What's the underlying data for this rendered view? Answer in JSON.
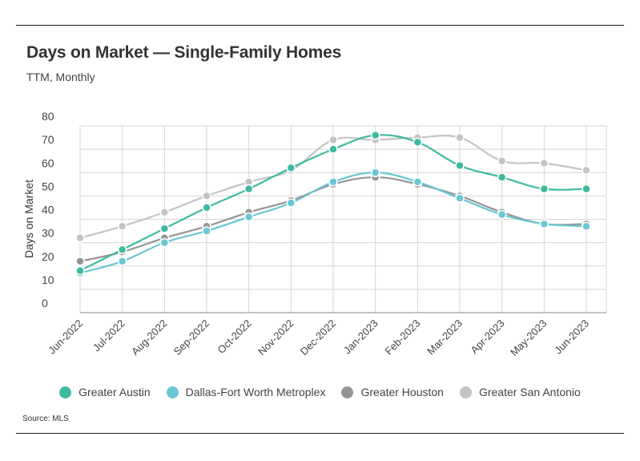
{
  "header": {
    "title": "Days on Market — Single-Family Homes",
    "subtitle": "TTM, Monthly"
  },
  "footer": {
    "source": "Source:  MLS"
  },
  "chart_data": {
    "type": "line",
    "title": "Days on Market — Single-Family Homes",
    "subtitle": "TTM, Monthly",
    "xlabel": "",
    "ylabel": "Days on Market",
    "ylim": [
      0,
      80
    ],
    "yticks": [
      "0",
      "10",
      "20",
      "30",
      "40",
      "50",
      "60",
      "70",
      "80"
    ],
    "grid": true,
    "legend_position": "bottom",
    "categories": [
      "Jun-2022",
      "Jul-2022",
      "Aug-2022",
      "Sep-2022",
      "Oct-2022",
      "Nov-2022",
      "Dec-2022",
      "Jan-2023",
      "Feb-2023",
      "Mar-2023",
      "Apr-2023",
      "May-2023",
      "Jun-2023"
    ],
    "series": [
      {
        "name": "Greater San Antonio",
        "color": "#c4c4c4",
        "values": [
          32,
          37,
          43,
          50,
          56,
          61,
          74,
          74,
          75,
          75,
          65,
          64,
          61
        ]
      },
      {
        "name": "Greater Houston",
        "color": "#959595",
        "values": [
          22,
          26,
          32,
          37,
          43,
          48,
          55,
          58,
          55,
          50,
          43,
          38,
          38
        ]
      },
      {
        "name": "Dallas-Fort Worth Metroplex",
        "color": "#6ac7d3",
        "values": [
          17,
          22,
          30,
          35,
          41,
          47,
          56,
          60,
          56,
          49,
          42,
          38,
          37
        ]
      },
      {
        "name": "Greater Austin",
        "color": "#3fbaa2",
        "values": [
          18,
          27,
          36,
          45,
          53,
          62,
          70,
          76,
          73,
          63,
          58,
          53,
          53
        ]
      }
    ],
    "legend_order": [
      "Greater Austin",
      "Dallas-Fort Worth Metroplex",
      "Greater Houston",
      "Greater San Antonio"
    ]
  }
}
